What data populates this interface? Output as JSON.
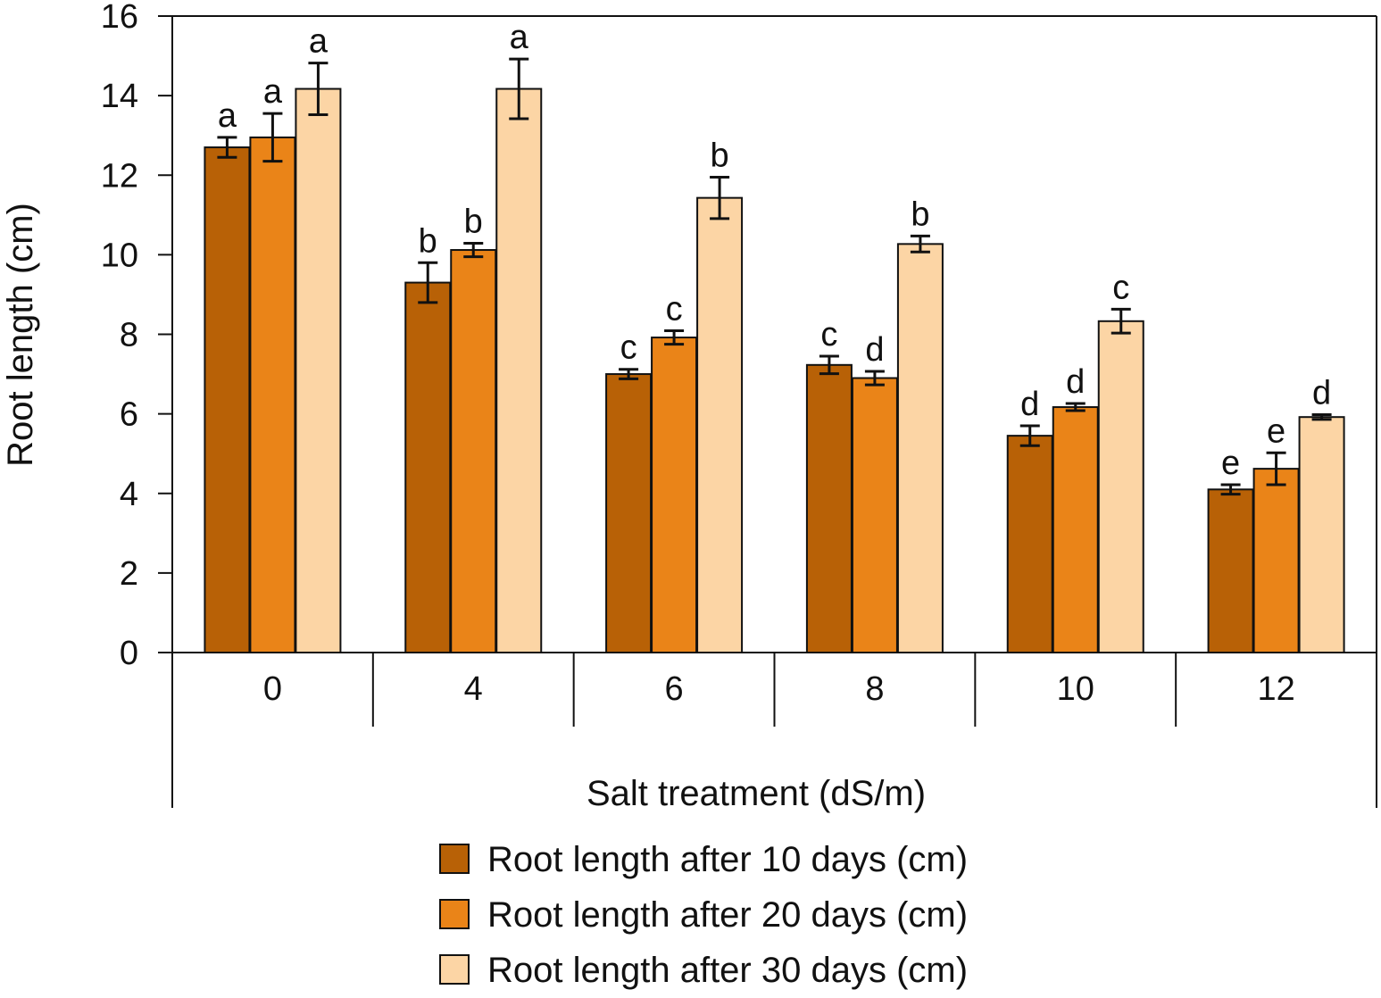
{
  "chart_data": {
    "type": "bar",
    "xlabel": "Salt treatment (dS/m)",
    "ylabel": "Root length (cm)",
    "ylim": [
      0,
      16
    ],
    "yticks": [
      0,
      2,
      4,
      6,
      8,
      10,
      12,
      14,
      16
    ],
    "categories": [
      "0",
      "4",
      "6",
      "8",
      "10",
      "12"
    ],
    "grid": false,
    "legend_position": "bottom",
    "series": [
      {
        "name": "Root length after 10 days (cm)",
        "color": "#b86106",
        "values": [
          12.7,
          9.3,
          7.0,
          7.23,
          5.45,
          4.1
        ],
        "errors": [
          0.25,
          0.5,
          0.12,
          0.22,
          0.25,
          0.12
        ],
        "letters": [
          "a",
          "b",
          "c",
          "c",
          "d",
          "e"
        ]
      },
      {
        "name": "Root length after 20 days (cm)",
        "color": "#ea8418",
        "values": [
          12.95,
          10.12,
          7.92,
          6.9,
          6.17,
          4.62
        ],
        "errors": [
          0.6,
          0.17,
          0.17,
          0.17,
          0.09,
          0.4
        ],
        "letters": [
          "a",
          "b",
          "c",
          "d",
          "d",
          "e"
        ]
      },
      {
        "name": "Root length after 30 days (cm)",
        "color": "#fcd5a5",
        "values": [
          14.17,
          14.17,
          11.43,
          10.27,
          8.33,
          5.92
        ],
        "errors": [
          0.65,
          0.75,
          0.52,
          0.2,
          0.3,
          0.06
        ],
        "letters": [
          "a",
          "a",
          "b",
          "b",
          "c",
          "d"
        ]
      }
    ]
  }
}
